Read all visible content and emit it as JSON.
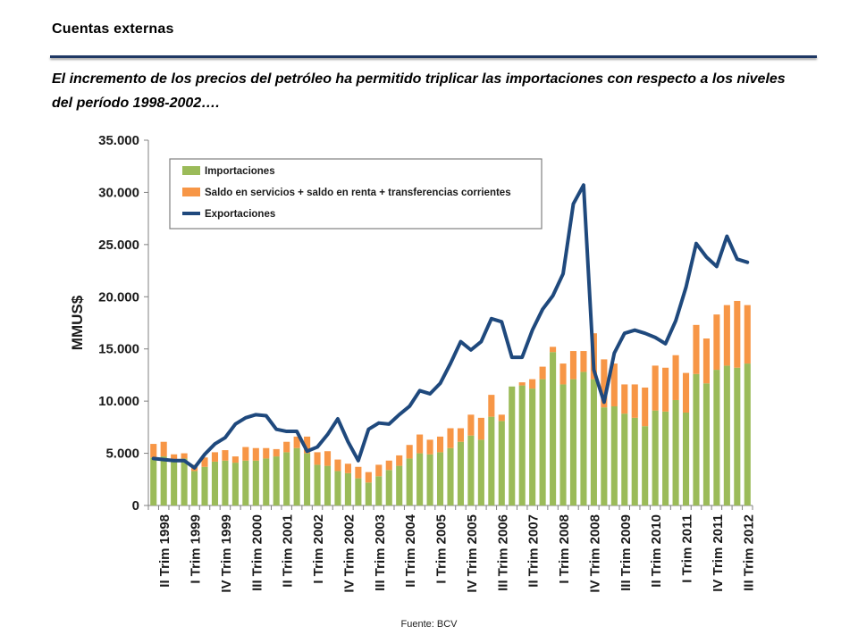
{
  "slide": {
    "title": "Cuentas externas",
    "subtitle": "El incremento de los precios del petróleo ha permitido  triplicar las importaciones con respecto a los niveles del período 1998-2002….",
    "source": "Fuente: BCV"
  },
  "chart_data": {
    "type": "bar",
    "stacked": true,
    "title": "",
    "xlabel": "",
    "ylabel": "MMUS$",
    "ylim": [
      0,
      35000
    ],
    "yticks": [
      0,
      5000,
      10000,
      15000,
      20000,
      25000,
      30000,
      35000
    ],
    "ytick_labels": [
      "0",
      "5.000",
      "10.000",
      "15.000",
      "20.000",
      "25.000",
      "30.000",
      "35.000"
    ],
    "grid": false,
    "legend_position": "top-left",
    "categories": [
      "I Trim 1998",
      "II Trim 1998",
      "III Trim 1998",
      "IV Trim 1998",
      "I Trim 1999",
      "II Trim 1999",
      "III Trim 1999",
      "IV Trim 1999",
      "I Trim 2000",
      "II Trim 2000",
      "III Trim 2000",
      "IV Trim 2000",
      "I Trim 2001",
      "II Trim 2001",
      "III Trim 2001",
      "IV Trim 2001",
      "I Trim 2002",
      "II Trim 2002",
      "III Trim 2002",
      "IV Trim 2002",
      "I Trim 2003",
      "II Trim 2003",
      "III Trim 2003",
      "IV Trim 2003",
      "I Trim 2004",
      "II Trim 2004",
      "III Trim 2004",
      "IV Trim 2004",
      "I Trim 2005",
      "II Trim 2005",
      "III Trim 2005",
      "IV Trim 2005",
      "I Trim 2006",
      "II Trim 2006",
      "III Trim 2006",
      "IV Trim 2006",
      "I Trim 2007",
      "II Trim 2007",
      "III Trim 2007",
      "IV Trim 2007",
      "I Trim 2008",
      "II Trim 2008",
      "III Trim 2008",
      "IV Trim 2008",
      "I Trim 2009",
      "II Trim 2009",
      "III Trim 2009",
      "IV Trim 2009",
      "I Trim 2010",
      "II Trim 2010",
      "III Trim 2010",
      "IV Trim 2010",
      "I Trim 2011",
      "II Trim 2011",
      "III Trim 2011",
      "IV Trim 2011",
      "I Trim 2012",
      "II Trim 2012",
      "III Trim 2012"
    ],
    "visible_xtick_labels": [
      "II Trim 1998",
      "I Trim 1999",
      "IV Trim 1999",
      "III Trim 2000",
      "II Trim 2001",
      "I Trim 2002",
      "IV Trim 2002",
      "III Trim 2003",
      "II Trim 2004",
      "I Trim 2005",
      "IV Trim 2005",
      "III Trim 2006",
      "II Trim 2007",
      "I Trim 2008",
      "IV Trim 2008",
      "III Trim 2009",
      "II Trim 2010",
      "I Trim 2011",
      "IV Trim 2011",
      "III Trim 2012"
    ],
    "series": [
      {
        "name": "Importaciones",
        "kind": "bar",
        "color": "#9bbb59",
        "values": [
          4600,
          4700,
          4300,
          4500,
          3300,
          3700,
          4200,
          4300,
          4100,
          4300,
          4300,
          4500,
          4700,
          5100,
          5500,
          5000,
          3900,
          3800,
          3300,
          3100,
          2600,
          2200,
          2800,
          3400,
          3800,
          4500,
          5000,
          4900,
          5100,
          5500,
          6100,
          6700,
          6300,
          8500,
          8100,
          11400,
          11500,
          11200,
          12100,
          14700,
          11600,
          12100,
          12800,
          12100,
          9400,
          9500,
          8800,
          8400,
          7600,
          9100,
          9000,
          10100,
          8900,
          12600,
          11700,
          13000,
          13400,
          13200,
          13600
        ]
      },
      {
        "name": "Saldo en servicios + saldo en renta + transferencias corrientes",
        "kind": "bar",
        "color": "#f79646",
        "values": [
          1300,
          1400,
          600,
          500,
          600,
          900,
          900,
          1000,
          600,
          1300,
          1200,
          1000,
          700,
          1000,
          1100,
          1600,
          1200,
          1400,
          1100,
          900,
          1100,
          1000,
          1100,
          900,
          1000,
          1300,
          1800,
          1400,
          1500,
          1900,
          1300,
          2000,
          2100,
          2100,
          600,
          0,
          300,
          900,
          1200,
          500,
          2000,
          2700,
          2000,
          4400,
          4600,
          4100,
          2800,
          3200,
          3700,
          4300,
          4200,
          4300,
          3800,
          4700,
          4300,
          5300,
          5800,
          6400,
          5600
        ]
      },
      {
        "name": "Exportaciones",
        "kind": "line",
        "color": "#1f497d",
        "values": [
          4500,
          4400,
          4300,
          4300,
          3600,
          4900,
          5900,
          6500,
          7800,
          8400,
          8700,
          8600,
          7300,
          7100,
          7100,
          5200,
          5600,
          6800,
          8300,
          6100,
          4300,
          7300,
          7900,
          7800,
          8700,
          9500,
          11000,
          10700,
          11700,
          13600,
          15700,
          14900,
          15700,
          17900,
          17600,
          14200,
          14200,
          16800,
          18800,
          20100,
          22200,
          28900,
          30700,
          13000,
          9900,
          14600,
          16500,
          16800,
          16500,
          16100,
          15500,
          17700,
          20900,
          25100,
          23800,
          22900,
          25800,
          23600,
          23300
        ]
      }
    ]
  }
}
